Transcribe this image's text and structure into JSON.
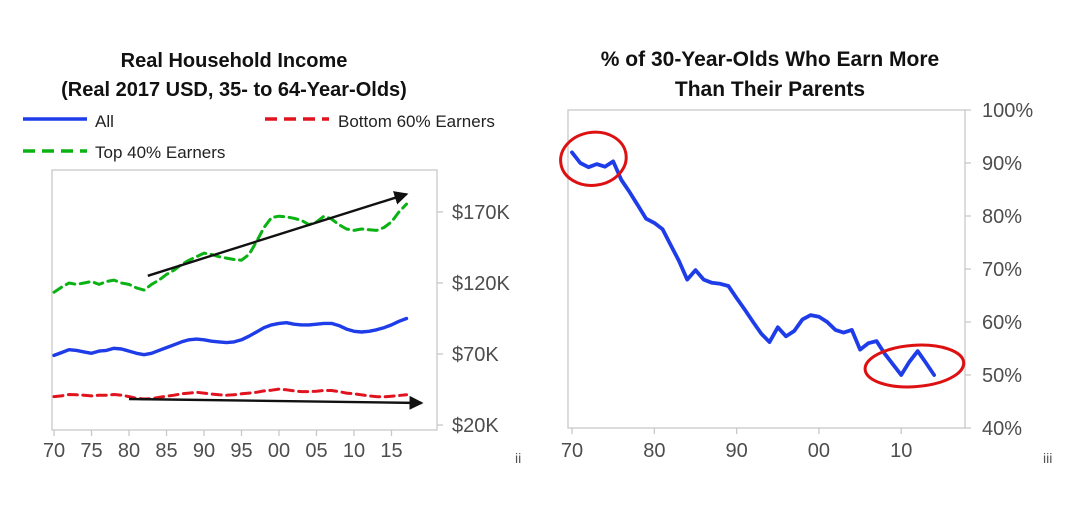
{
  "figure": {
    "footnote_left": "ii",
    "footnote_right": "iii"
  },
  "left_chart": {
    "title_line1": "Real Household Income",
    "title_line2": "(Real 2017 USD, 35- to 64-Year-Olds)",
    "legend": {
      "all_label": "All",
      "bottom60_label": "Bottom 60% Earners",
      "top40_label": "Top 40% Earners"
    }
  },
  "right_chart": {
    "title_line1": "% of 30-Year-Olds Who Earn More",
    "title_line2": "Than Their Parents"
  },
  "colors": {
    "all_line": "#1e3ce8",
    "bottom60_line": "#e1131f",
    "top40_line": "#0ab214",
    "percent_line": "#1e3ce8",
    "annotation_arrow": "#111111",
    "annotation_ellipse": "#dd1111",
    "axis_border": "#c8c8c8",
    "tick_label": "#4d4d4d"
  },
  "chart_data": [
    {
      "type": "line",
      "title": "Real Household Income (Real 2017 USD, 35- to 64-Year-Olds)",
      "units": "thousand 2017 USD",
      "x_start_year": 1970,
      "xlim": [
        1969.73,
        2021.07
      ],
      "ylim": [
        16.5,
        199.5
      ],
      "grid": false,
      "legend_position": "top",
      "x_ticks": [
        {
          "year": 1970,
          "label": "70"
        },
        {
          "year": 1975,
          "label": "75"
        },
        {
          "year": 1980,
          "label": "80"
        },
        {
          "year": 1985,
          "label": "85"
        },
        {
          "year": 1990,
          "label": "90"
        },
        {
          "year": 1995,
          "label": "95"
        },
        {
          "year": 2000,
          "label": "00"
        },
        {
          "year": 2005,
          "label": "05"
        },
        {
          "year": 2010,
          "label": "10"
        },
        {
          "year": 2015,
          "label": "15"
        }
      ],
      "y_ticks": [
        {
          "value": 20,
          "label": "$20K"
        },
        {
          "value": 70,
          "label": "$70K"
        },
        {
          "value": 120,
          "label": "$120K"
        },
        {
          "value": 170,
          "label": "$170K"
        }
      ],
      "series": [
        {
          "name": "Top 40% Earners",
          "color_key": "top40_line",
          "dash": "dashed",
          "width": 3,
          "values": [
            113.5,
            117,
            120,
            119,
            120,
            121,
            119,
            121,
            122,
            120,
            119,
            116.5,
            115,
            119,
            122,
            126,
            129,
            133,
            136,
            138.5,
            141,
            140,
            138.5,
            137.5,
            136.5,
            136,
            140,
            149,
            159,
            166,
            167,
            166.5,
            165.5,
            164,
            161,
            163,
            167,
            165,
            161,
            158,
            157,
            158,
            157.5,
            157,
            159,
            163,
            170,
            175.5
          ]
        },
        {
          "name": "All",
          "color_key": "all_line",
          "dash": "solid",
          "width": 3.4,
          "values": [
            69,
            71,
            73,
            72.5,
            71.5,
            70.5,
            72,
            72.5,
            74,
            73.5,
            72,
            70.5,
            69.5,
            70.5,
            72.5,
            74.5,
            76.5,
            78.5,
            80,
            80.5,
            80,
            79,
            78.5,
            78,
            78.5,
            80,
            82.5,
            85.5,
            88.5,
            90.5,
            91.5,
            92,
            91,
            90.5,
            90.5,
            91,
            91.5,
            91.5,
            90,
            87.5,
            86,
            85.5,
            86,
            87,
            88.5,
            90.5,
            93,
            95
          ]
        },
        {
          "name": "Bottom 60% Earners",
          "color_key": "bottom60_line",
          "dash": "dashed",
          "width": 3,
          "values": [
            40,
            40.5,
            41.5,
            41.3,
            41,
            40.5,
            41,
            41,
            41.5,
            41,
            40,
            38.8,
            38.3,
            38.5,
            39.5,
            40.3,
            41,
            42,
            42.5,
            43,
            42.5,
            41.8,
            41.3,
            41,
            41.3,
            42,
            42.5,
            43,
            44,
            44.5,
            45.3,
            44.8,
            44,
            43.5,
            43.5,
            43.8,
            44.3,
            44.3,
            43.5,
            42.5,
            42,
            41.3,
            40.5,
            40,
            39.8,
            40.3,
            40.8,
            41.3
          ]
        }
      ],
      "arrows": [
        {
          "from_year": 1982.5,
          "from_value": 125,
          "to_year": 2017,
          "to_value": 182.5
        },
        {
          "from_year": 1980,
          "from_value": 38.3,
          "to_year": 2019,
          "to_value": 35.5
        }
      ],
      "ellipses": []
    },
    {
      "type": "line",
      "title": "% of 30-Year-Olds Who Earn More Than Their Parents",
      "units": "percent",
      "x_start_year": 1970,
      "xlim": [
        1969.51,
        2017.75
      ],
      "ylim": [
        40,
        100
      ],
      "grid": false,
      "legend_position": "none",
      "x_ticks": [
        {
          "year": 1970,
          "label": "70"
        },
        {
          "year": 1980,
          "label": "80"
        },
        {
          "year": 1990,
          "label": "90"
        },
        {
          "year": 2000,
          "label": "00"
        },
        {
          "year": 2010,
          "label": "10"
        }
      ],
      "y_ticks": [
        {
          "value": 100,
          "label": "100%"
        },
        {
          "value": 90,
          "label": "90%"
        },
        {
          "value": 80,
          "label": "80%"
        },
        {
          "value": 70,
          "label": "70%"
        },
        {
          "value": 60,
          "label": "60%"
        },
        {
          "value": 50,
          "label": "50%"
        },
        {
          "value": 40,
          "label": "40%"
        }
      ],
      "series": [
        {
          "name": "% of 30-year-olds who earn more than their parents",
          "color_key": "percent_line",
          "dash": "solid",
          "width": 3.8,
          "values": [
            92,
            90,
            89.2,
            89.8,
            89.3,
            90.3,
            86.8,
            84.5,
            82,
            79.5,
            78.7,
            77.5,
            74.5,
            71.5,
            68,
            69.8,
            68,
            67.4,
            67.2,
            66.8,
            64.5,
            62.3,
            60,
            57.8,
            56.2,
            59,
            57.3,
            58.3,
            60.5,
            61.3,
            61,
            60,
            58.5,
            58,
            58.5,
            54.8,
            56,
            56.4,
            54,
            52,
            50,
            52.5,
            54.5,
            52.3,
            50
          ]
        }
      ],
      "arrows": [],
      "ellipses": [
        {
          "cx_year": 1972.6,
          "cy_value": 90.8,
          "rx_years": 4.0,
          "ry_values": 5.0,
          "rotate_deg": -8
        },
        {
          "cx_year": 2011.6,
          "cy_value": 51.7,
          "rx_years": 6.0,
          "ry_values": 3.9,
          "rotate_deg": -4
        }
      ]
    }
  ]
}
